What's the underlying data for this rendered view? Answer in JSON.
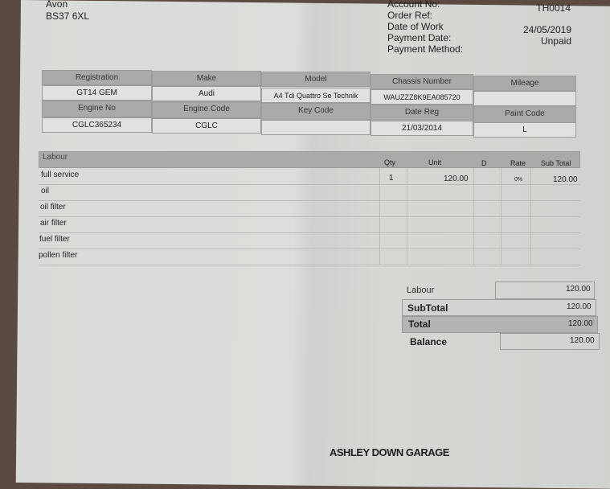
{
  "customer": {
    "county": "Avon",
    "postcode": "BS37 6XL"
  },
  "invoice_info": [
    {
      "label": "Account No:",
      "value": "TH0014"
    },
    {
      "label": "Order Ref:",
      "value": ""
    },
    {
      "label": "Date of Work",
      "value": "24/05/2019"
    },
    {
      "label": "Payment Date:",
      "value": "Unpaid"
    },
    {
      "label": "Payment Method:",
      "value": ""
    }
  ],
  "vehicle": {
    "headers1": [
      "Registration",
      "Make",
      "Model",
      "Chassis Number",
      "Mileage"
    ],
    "values1": [
      "GT14 GEM",
      "Audi",
      "A4 Tdi Quattro Se Technik",
      "WAUZZZ8K9EA085720",
      ""
    ],
    "headers2": [
      "Engine No",
      "Engine Code",
      "Key Code",
      "Date Reg",
      "Paint Code"
    ],
    "values2": [
      "CGLC365234",
      "CGLC",
      "",
      "21/03/2014",
      "L"
    ]
  },
  "labour": {
    "headers": [
      "Labour",
      "Qty",
      "Unit",
      "D",
      "Rate",
      "Sub Total"
    ],
    "rows": [
      {
        "desc": "full service",
        "qty": "1",
        "unit": "120.00",
        "d": "",
        "rate": "0%",
        "subtotal": "120.00"
      },
      {
        "desc": "oil",
        "qty": "",
        "unit": "",
        "d": "",
        "rate": "",
        "subtotal": ""
      },
      {
        "desc": "oil filter",
        "qty": "",
        "unit": "",
        "d": "",
        "rate": "",
        "subtotal": ""
      },
      {
        "desc": "air filter",
        "qty": "",
        "unit": "",
        "d": "",
        "rate": "",
        "subtotal": ""
      },
      {
        "desc": "fuel filter",
        "qty": "",
        "unit": "",
        "d": "",
        "rate": "",
        "subtotal": ""
      },
      {
        "desc": "pollen filter",
        "qty": "",
        "unit": "",
        "d": "",
        "rate": "",
        "subtotal": ""
      }
    ]
  },
  "totals": [
    {
      "label": "Labour",
      "value": "120.00"
    },
    {
      "label": "SubTotal",
      "value": "120.00"
    },
    {
      "label": "Total",
      "value": "120.00"
    },
    {
      "label": "Balance",
      "value": "120.00"
    }
  ],
  "footer": {
    "garage_name": "ASHLEY DOWN GARAGE"
  }
}
